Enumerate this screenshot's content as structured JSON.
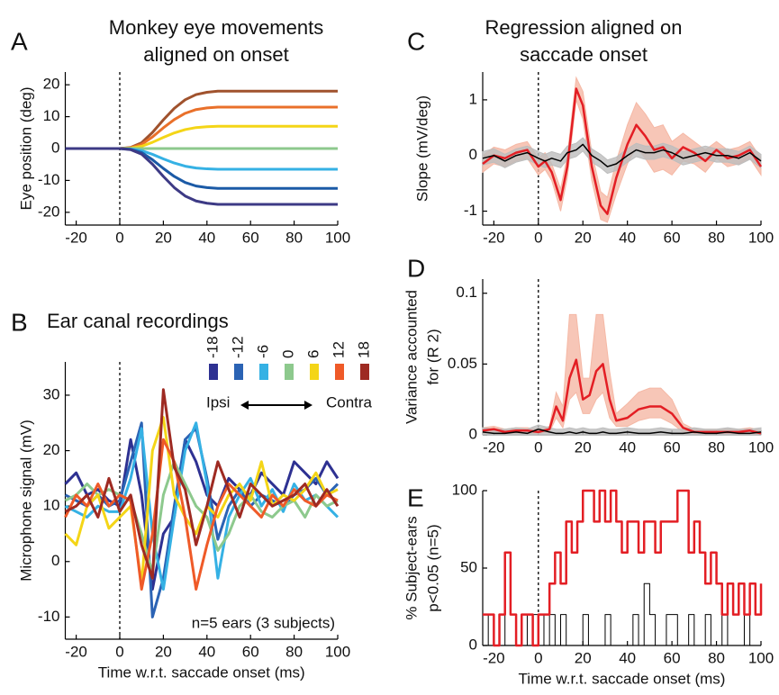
{
  "chart_data": [
    {
      "type": "line",
      "panel": "A",
      "title": [
        "Monkey eye movements",
        "aligned on onset"
      ],
      "ylabel": [
        "Eye position (deg)"
      ],
      "xlim": [
        -25,
        100
      ],
      "xticks": [
        -20,
        0,
        20,
        40,
        60,
        80,
        100
      ],
      "ylim": [
        -24,
        24
      ],
      "yticks": [
        -20,
        -10,
        0,
        10,
        20
      ],
      "vline": 0,
      "x": [
        -25,
        0,
        5,
        10,
        15,
        20,
        25,
        30,
        35,
        40,
        45,
        50,
        100
      ],
      "series": [
        {
          "color": "#a0522d",
          "values": [
            0,
            0,
            0.36,
            1.8,
            5.04,
            9,
            12.6,
            15.3,
            16.92,
            17.64,
            18,
            18,
            18
          ]
        },
        {
          "color": "#e9702a",
          "values": [
            0,
            0,
            0.26,
            1.3,
            3.64,
            6.5,
            9.1,
            11.05,
            12.22,
            12.74,
            13,
            13,
            13
          ]
        },
        {
          "color": "#f4d517",
          "values": [
            0,
            0,
            0.14,
            0.7,
            1.96,
            3.5,
            4.9,
            5.95,
            6.58,
            6.86,
            7,
            7,
            7
          ]
        },
        {
          "color": "#8dc98d",
          "values": [
            0,
            0,
            0,
            0,
            0,
            0,
            0,
            0,
            0,
            0,
            0,
            0,
            0
          ]
        },
        {
          "color": "#35b1e4",
          "values": [
            0,
            0,
            -0.13,
            -0.65,
            -1.82,
            -3.25,
            -4.55,
            -5.53,
            -6.11,
            -6.37,
            -6.5,
            -6.5,
            -6.5
          ]
        },
        {
          "color": "#1b5aa6",
          "values": [
            0,
            0,
            -0.25,
            -1.25,
            -3.5,
            -6.25,
            -8.75,
            -10.63,
            -11.75,
            -12.25,
            -12.5,
            -12.5,
            -12.5
          ]
        },
        {
          "color": "#3d3a85",
          "values": [
            0,
            0,
            -0.35,
            -1.75,
            -4.9,
            -8.75,
            -12.25,
            -14.88,
            -16.45,
            -17.15,
            -17.5,
            -17.5,
            -17.5
          ]
        }
      ]
    },
    {
      "type": "line",
      "panel": "B",
      "title": [
        "Ear canal recordings"
      ],
      "ylabel": [
        "Microphone signal (mV)"
      ],
      "xlabel": "Time w.r.t. saccade onset (ms)",
      "xlim": [
        -25,
        100
      ],
      "xticks": [
        -20,
        0,
        20,
        40,
        60,
        80,
        100
      ],
      "ylim": [
        -14,
        36
      ],
      "yticks": [
        -10,
        0,
        10,
        20,
        30
      ],
      "vline": 0,
      "legend": "top-right",
      "legend_caption": {
        "left": "Ipsi",
        "right": "Contra"
      },
      "annotation": "n=5 ears (3 subjects)",
      "x": [
        -25,
        -20,
        -15,
        -10,
        -5,
        0,
        5,
        10,
        15,
        20,
        25,
        30,
        35,
        40,
        45,
        50,
        55,
        60,
        65,
        70,
        75,
        80,
        85,
        90,
        95,
        100
      ],
      "series": [
        {
          "name": "-18",
          "color": "#2e3192",
          "values": [
            14,
            16,
            12,
            13,
            11,
            10,
            22,
            12,
            -5,
            5,
            8,
            22,
            18,
            12,
            10,
            15,
            13,
            12,
            16,
            14,
            12,
            18,
            16,
            14,
            18,
            15
          ]
        },
        {
          "name": "-12",
          "color": "#2b63b4",
          "values": [
            12,
            11,
            10,
            12,
            10,
            11,
            18,
            25,
            -10,
            -3,
            10,
            22,
            24,
            15,
            4,
            10,
            13,
            10,
            12,
            11,
            10,
            12,
            13,
            15,
            12,
            14
          ]
        },
        {
          "name": "-6",
          "color": "#35b1e4",
          "values": [
            10,
            9,
            8,
            10,
            9,
            9,
            15,
            24,
            5,
            -5,
            8,
            20,
            25,
            14,
            -3,
            8,
            12,
            15,
            10,
            13,
            9,
            14,
            11,
            12,
            10,
            8
          ]
        },
        {
          "name": "0",
          "color": "#8dc98d",
          "values": [
            11,
            12,
            14,
            12,
            13,
            12,
            11,
            5,
            -2,
            12,
            18,
            14,
            10,
            8,
            2,
            5,
            10,
            12,
            9,
            8,
            10,
            11,
            8,
            12,
            10,
            11
          ]
        },
        {
          "name": "6",
          "color": "#f4d517",
          "values": [
            5,
            3,
            10,
            12,
            6,
            8,
            10,
            -4,
            20,
            26,
            12,
            8,
            5,
            10,
            8,
            12,
            14,
            11,
            18,
            10,
            12,
            11,
            13,
            16,
            12,
            13
          ]
        },
        {
          "name": "12",
          "color": "#ef5a28",
          "values": [
            8,
            12,
            10,
            14,
            10,
            12,
            11,
            -5,
            5,
            22,
            18,
            8,
            -5,
            3,
            10,
            14,
            12,
            10,
            8,
            12,
            10,
            13,
            11,
            10,
            12,
            11
          ]
        },
        {
          "name": "18",
          "color": "#9e2a22",
          "values": [
            9,
            10,
            12,
            8,
            15,
            9,
            12,
            3,
            -3,
            31,
            17,
            13,
            3,
            10,
            18,
            13,
            8,
            14,
            12,
            10,
            11,
            12,
            14,
            10,
            13,
            10
          ]
        }
      ]
    },
    {
      "type": "band",
      "panel": "C",
      "title": [
        "Regression aligned on",
        "saccade onset"
      ],
      "ylabel": [
        "Slope (mV/deg)"
      ],
      "xlim": [
        -25,
        100
      ],
      "xticks": [
        -20,
        0,
        20,
        40,
        60,
        80,
        100
      ],
      "ylim": [
        -1.25,
        1.5
      ],
      "yticks": [
        -1,
        0,
        1
      ],
      "vline": 0,
      "x": [
        -25,
        -20,
        -15,
        -10,
        -5,
        0,
        3,
        6,
        10,
        13,
        17,
        20,
        24,
        28,
        31,
        35,
        40,
        44,
        48,
        52,
        56,
        60,
        65,
        70,
        75,
        80,
        85,
        90,
        95,
        100
      ],
      "series": [
        {
          "color": "#e31e24",
          "band_color": "#f5b8a5",
          "values": [
            -0.15,
            0,
            -0.05,
            0.05,
            0.1,
            -0.2,
            -0.1,
            -0.3,
            -0.8,
            -0.2,
            1.2,
            0.9,
            -0.2,
            -0.9,
            -1.05,
            -0.4,
            0.2,
            0.55,
            0.35,
            0.1,
            0.15,
            -0.05,
            0.15,
            0.05,
            -0.1,
            0.1,
            -0.05,
            0,
            0.1,
            -0.2
          ],
          "upper": [
            0,
            0.15,
            0.1,
            0.2,
            0.25,
            -0.05,
            0.05,
            -0.15,
            -0.6,
            0,
            1.4,
            1.15,
            0.05,
            -0.65,
            -0.75,
            -0.1,
            0.55,
            0.95,
            0.75,
            0.5,
            0.55,
            0.25,
            0.4,
            0.25,
            0.1,
            0.25,
            0.1,
            0.15,
            0.25,
            -0.05
          ],
          "lower": [
            -0.3,
            -0.15,
            -0.2,
            -0.1,
            -0.05,
            -0.35,
            -0.25,
            -0.45,
            -1,
            -0.4,
            1,
            0.65,
            -0.45,
            -1.15,
            -1.2,
            -0.7,
            -0.15,
            0.15,
            -0.05,
            -0.3,
            -0.25,
            -0.35,
            -0.1,
            -0.15,
            -0.3,
            -0.05,
            -0.2,
            -0.15,
            -0.05,
            -0.35
          ]
        },
        {
          "color": "#000000",
          "band_color": "#bdbdbd",
          "values": [
            -0.05,
            0,
            -0.1,
            0,
            0.05,
            -0.05,
            -0.1,
            -0.05,
            -0.1,
            0.05,
            0.1,
            0.2,
            0,
            -0.1,
            -0.2,
            -0.15,
            0,
            0.1,
            0.05,
            0.05,
            0.1,
            0.05,
            -0.05,
            0,
            0.05,
            0,
            0,
            -0.05,
            0.05,
            -0.1
          ],
          "upper": [
            0.07,
            0.12,
            0.02,
            0.12,
            0.17,
            0.07,
            0.02,
            0.07,
            0.02,
            0.17,
            0.22,
            0.32,
            0.12,
            0.02,
            -0.08,
            -0.03,
            0.12,
            0.22,
            0.17,
            0.17,
            0.22,
            0.17,
            0.07,
            0.12,
            0.17,
            0.12,
            0.12,
            0.07,
            0.17,
            0.02
          ],
          "lower": [
            -0.17,
            -0.12,
            -0.22,
            -0.12,
            -0.07,
            -0.17,
            -0.22,
            -0.17,
            -0.22,
            -0.07,
            -0.02,
            0.08,
            -0.12,
            -0.22,
            -0.32,
            -0.27,
            -0.12,
            -0.02,
            -0.07,
            -0.07,
            -0.02,
            -0.07,
            -0.17,
            -0.12,
            -0.07,
            -0.12,
            -0.12,
            -0.17,
            -0.07,
            -0.22
          ]
        }
      ]
    },
    {
      "type": "band",
      "panel": "D",
      "ylabel": [
        "Variance accounted",
        "for (R 2)"
      ],
      "xlim": [
        -25,
        100
      ],
      "xticks": [
        -20,
        0,
        20,
        40,
        60,
        80,
        100
      ],
      "ylim": [
        0,
        0.11
      ],
      "yticks": [
        0,
        0.05,
        0.1
      ],
      "vline": 0,
      "x": [
        -25,
        -20,
        -15,
        -10,
        -5,
        0,
        5,
        8,
        11,
        14,
        17,
        20,
        23,
        26,
        29,
        32,
        35,
        40,
        45,
        50,
        55,
        60,
        65,
        70,
        75,
        80,
        85,
        90,
        95,
        100
      ],
      "series": [
        {
          "color": "#e31e24",
          "band_color": "#f5b8a5",
          "values": [
            0.003,
            0.004,
            0.002,
            0.003,
            0.003,
            0.002,
            0.004,
            0.02,
            0.01,
            0.04,
            0.053,
            0.025,
            0.028,
            0.045,
            0.05,
            0.025,
            0.01,
            0.012,
            0.018,
            0.02,
            0.02,
            0.015,
            0.005,
            0.002,
            0.002,
            0.002,
            0.002,
            0.002,
            0.003,
            0.001
          ],
          "upper": [
            0.005,
            0.006,
            0.004,
            0.005,
            0.005,
            0.004,
            0.006,
            0.03,
            0.02,
            0.085,
            0.085,
            0.04,
            0.04,
            0.085,
            0.085,
            0.045,
            0.015,
            0.022,
            0.03,
            0.033,
            0.033,
            0.025,
            0.008,
            0.004,
            0.004,
            0.004,
            0.004,
            0.004,
            0.005,
            0.003
          ],
          "lower": [
            0.001,
            0.002,
            0.001,
            0.001,
            0.001,
            0.001,
            0.002,
            0.012,
            0.005,
            0.025,
            0.03,
            0.015,
            0.015,
            0.025,
            0.03,
            0.012,
            0.006,
            0.006,
            0.01,
            0.012,
            0.012,
            0.008,
            0.002,
            0.001,
            0.001,
            0.001,
            0.001,
            0.001,
            0.001,
            0
          ]
        },
        {
          "color": "#000000",
          "band_color": "#bdbdbd",
          "values": [
            0.002,
            0.001,
            0.001,
            0.002,
            0.001,
            0.004,
            0.002,
            0.001,
            0.001,
            0.002,
            0.001,
            0.002,
            0.001,
            0.001,
            0.002,
            0.001,
            0.001,
            0.002,
            0.001,
            0.001,
            0.002,
            0.001,
            0.001,
            0.002,
            0.001,
            0.001,
            0.002,
            0.001,
            0.001,
            0.002
          ],
          "upper": [
            0.005,
            0.004,
            0.004,
            0.005,
            0.004,
            0.007,
            0.005,
            0.004,
            0.004,
            0.005,
            0.004,
            0.005,
            0.004,
            0.004,
            0.005,
            0.004,
            0.004,
            0.005,
            0.004,
            0.004,
            0.005,
            0.004,
            0.004,
            0.005,
            0.004,
            0.004,
            0.005,
            0.004,
            0.004,
            0.005
          ],
          "lower": [
            0,
            0,
            0,
            0,
            0,
            0,
            0,
            0,
            0,
            0,
            0,
            0,
            0,
            0,
            0,
            0,
            0,
            0,
            0,
            0,
            0,
            0,
            0,
            0,
            0,
            0,
            0,
            0,
            0,
            0
          ]
        }
      ]
    },
    {
      "type": "step",
      "panel": "E",
      "ylabel": [
        "% Subject-ears",
        "p<0.05 (n=5)"
      ],
      "xlabel": "Time w.r.t. saccade onset (ms)",
      "xlim": [
        -25,
        100
      ],
      "xticks": [
        -20,
        0,
        20,
        40,
        60,
        80,
        100
      ],
      "ylim": [
        0,
        100
      ],
      "yticks": [
        0,
        50,
        100
      ],
      "vline": 0,
      "x": [
        -25,
        -22.5,
        -20,
        -17.5,
        -15,
        -12.5,
        -10,
        -7.5,
        -5,
        -2.5,
        0,
        2.5,
        5,
        7.5,
        10,
        12.5,
        15,
        17.5,
        20,
        22.5,
        25,
        27.5,
        30,
        32.5,
        35,
        37.5,
        40,
        42.5,
        45,
        47.5,
        50,
        52.5,
        55,
        57.5,
        60,
        62.5,
        65,
        67.5,
        70,
        72.5,
        75,
        77.5,
        80,
        82.5,
        85,
        87.5,
        90,
        92.5,
        95,
        97.5,
        100
      ],
      "series": [
        {
          "color": "#000000",
          "values": [
            20,
            0,
            0,
            20,
            0,
            0,
            0,
            20,
            0,
            20,
            20,
            0,
            20,
            0,
            20,
            0,
            0,
            0,
            20,
            0,
            0,
            0,
            20,
            0,
            0,
            0,
            0,
            20,
            0,
            40,
            20,
            0,
            0,
            20,
            20,
            0,
            0,
            20,
            0,
            0,
            20,
            0,
            0,
            20,
            0,
            0,
            0,
            20,
            0,
            0,
            0
          ]
        },
        {
          "color": "#e31e24",
          "values": [
            20,
            20,
            0,
            20,
            60,
            20,
            0,
            20,
            20,
            0,
            20,
            20,
            40,
            60,
            40,
            80,
            60,
            80,
            100,
            100,
            80,
            100,
            80,
            100,
            80,
            60,
            80,
            80,
            60,
            80,
            80,
            60,
            80,
            80,
            80,
            100,
            100,
            60,
            80,
            60,
            40,
            60,
            40,
            20,
            40,
            20,
            40,
            20,
            40,
            20,
            40
          ]
        }
      ]
    }
  ]
}
